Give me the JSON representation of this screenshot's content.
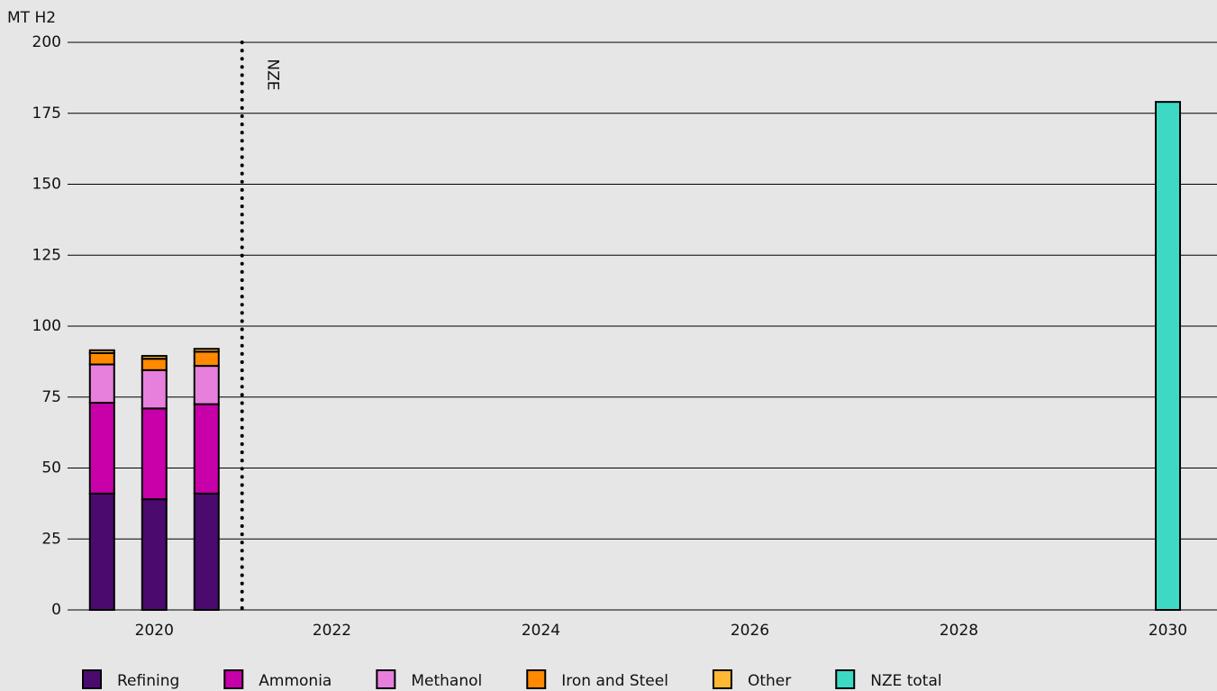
{
  "chart_data": {
    "type": "stacked_bar",
    "y_label": "MT H2",
    "x": [
      2019.8,
      2020.3,
      2020.8,
      2030
    ],
    "series": [
      {
        "name": "Refining",
        "color": "#4b0a6e",
        "values": [
          41,
          39,
          41,
          null
        ]
      },
      {
        "name": "Ammonia",
        "color": "#c800aa",
        "values": [
          32,
          32,
          31.5,
          null
        ]
      },
      {
        "name": "Methanol",
        "color": "#e680dc",
        "values": [
          13.5,
          13.5,
          13.5,
          null
        ]
      },
      {
        "name": "Iron and Steel",
        "color": "#ff8a00",
        "values": [
          4,
          4,
          5,
          null
        ]
      },
      {
        "name": "Other",
        "color": "#ffb833",
        "values": [
          1,
          1,
          1,
          null
        ]
      },
      {
        "name": "NZE total",
        "color": "#3dd9c5",
        "values": [
          null,
          null,
          null,
          179
        ]
      }
    ],
    "xlim": [
      2019.47,
      2030.47
    ],
    "xticks": [
      {
        "value": 2020.3,
        "label": "2020"
      },
      2022,
      2024,
      2026,
      2028,
      2030
    ],
    "ylim": [
      0,
      200
    ],
    "yticks": [
      0,
      25,
      50,
      75,
      100,
      125,
      150,
      175,
      200
    ],
    "grid": true,
    "annotations": [
      {
        "text": "NZE",
        "x": 2021.14
      }
    ],
    "legend": "bottom"
  }
}
